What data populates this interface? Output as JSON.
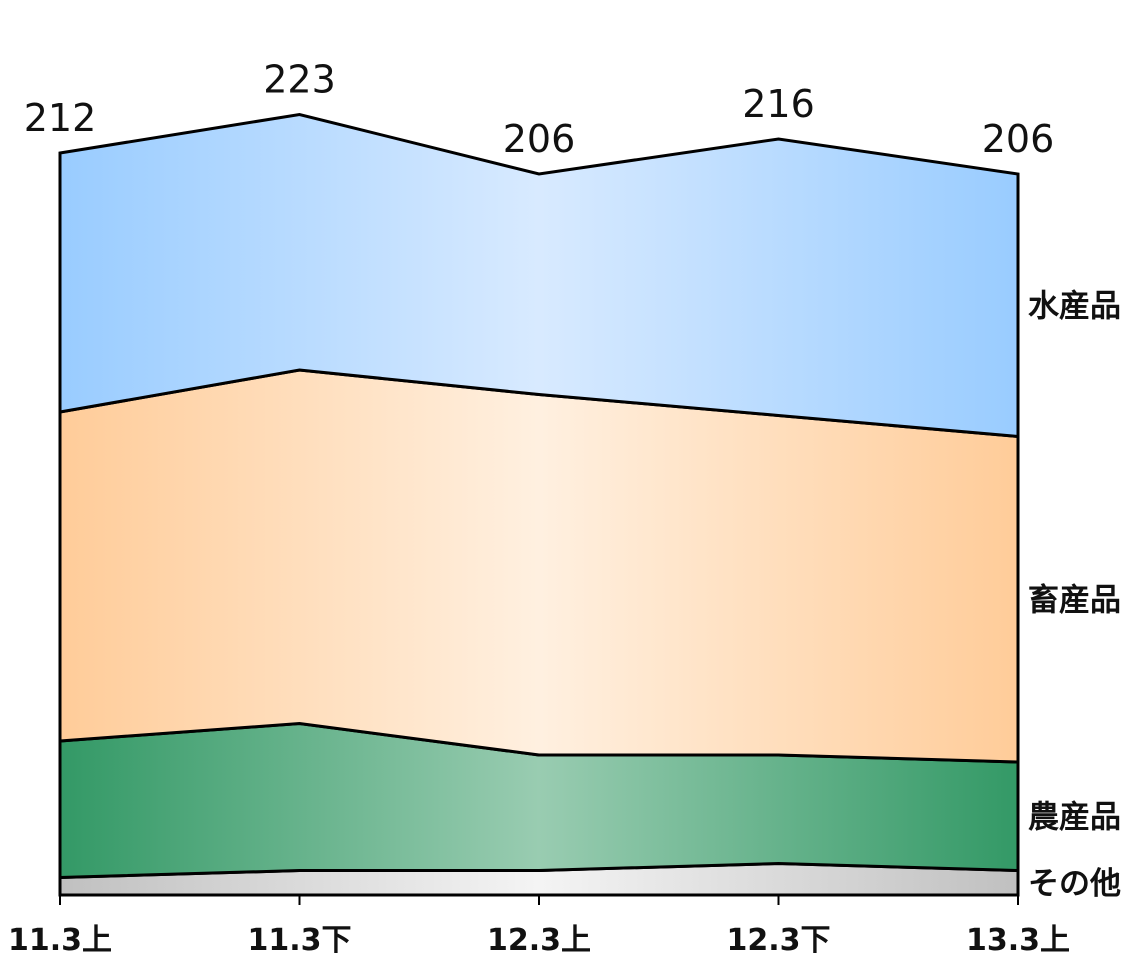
{
  "chart_data": {
    "type": "area",
    "stacked": true,
    "categories": [
      "11.3上",
      "11.3下",
      "12.3上",
      "12.3下",
      "13.3上"
    ],
    "totals": [
      212,
      223,
      206,
      216,
      206
    ],
    "series": [
      {
        "name": "その他",
        "values": [
          5,
          7,
          7,
          9,
          7
        ]
      },
      {
        "name": "農産品",
        "values": [
          39,
          42,
          33,
          31,
          31
        ]
      },
      {
        "name": "畜産品",
        "values": [
          94,
          101,
          103,
          97,
          93
        ]
      },
      {
        "name": "水産品",
        "values": [
          74,
          73,
          63,
          79,
          75
        ]
      }
    ],
    "colors": {
      "その他": {
        "edge": "#c0c0c0",
        "center": "#f4f4f4"
      },
      "農産品": {
        "edge": "#339966",
        "center": "#99ccb1"
      },
      "畜産品": {
        "edge": "#ffcc99",
        "center": "#fff0e0"
      },
      "水産品": {
        "edge": "#99ccff",
        "center": "#d8eaff"
      }
    },
    "line_color": "#000000",
    "ylim": [
      0,
      240
    ],
    "grid": false,
    "legend": "right"
  }
}
